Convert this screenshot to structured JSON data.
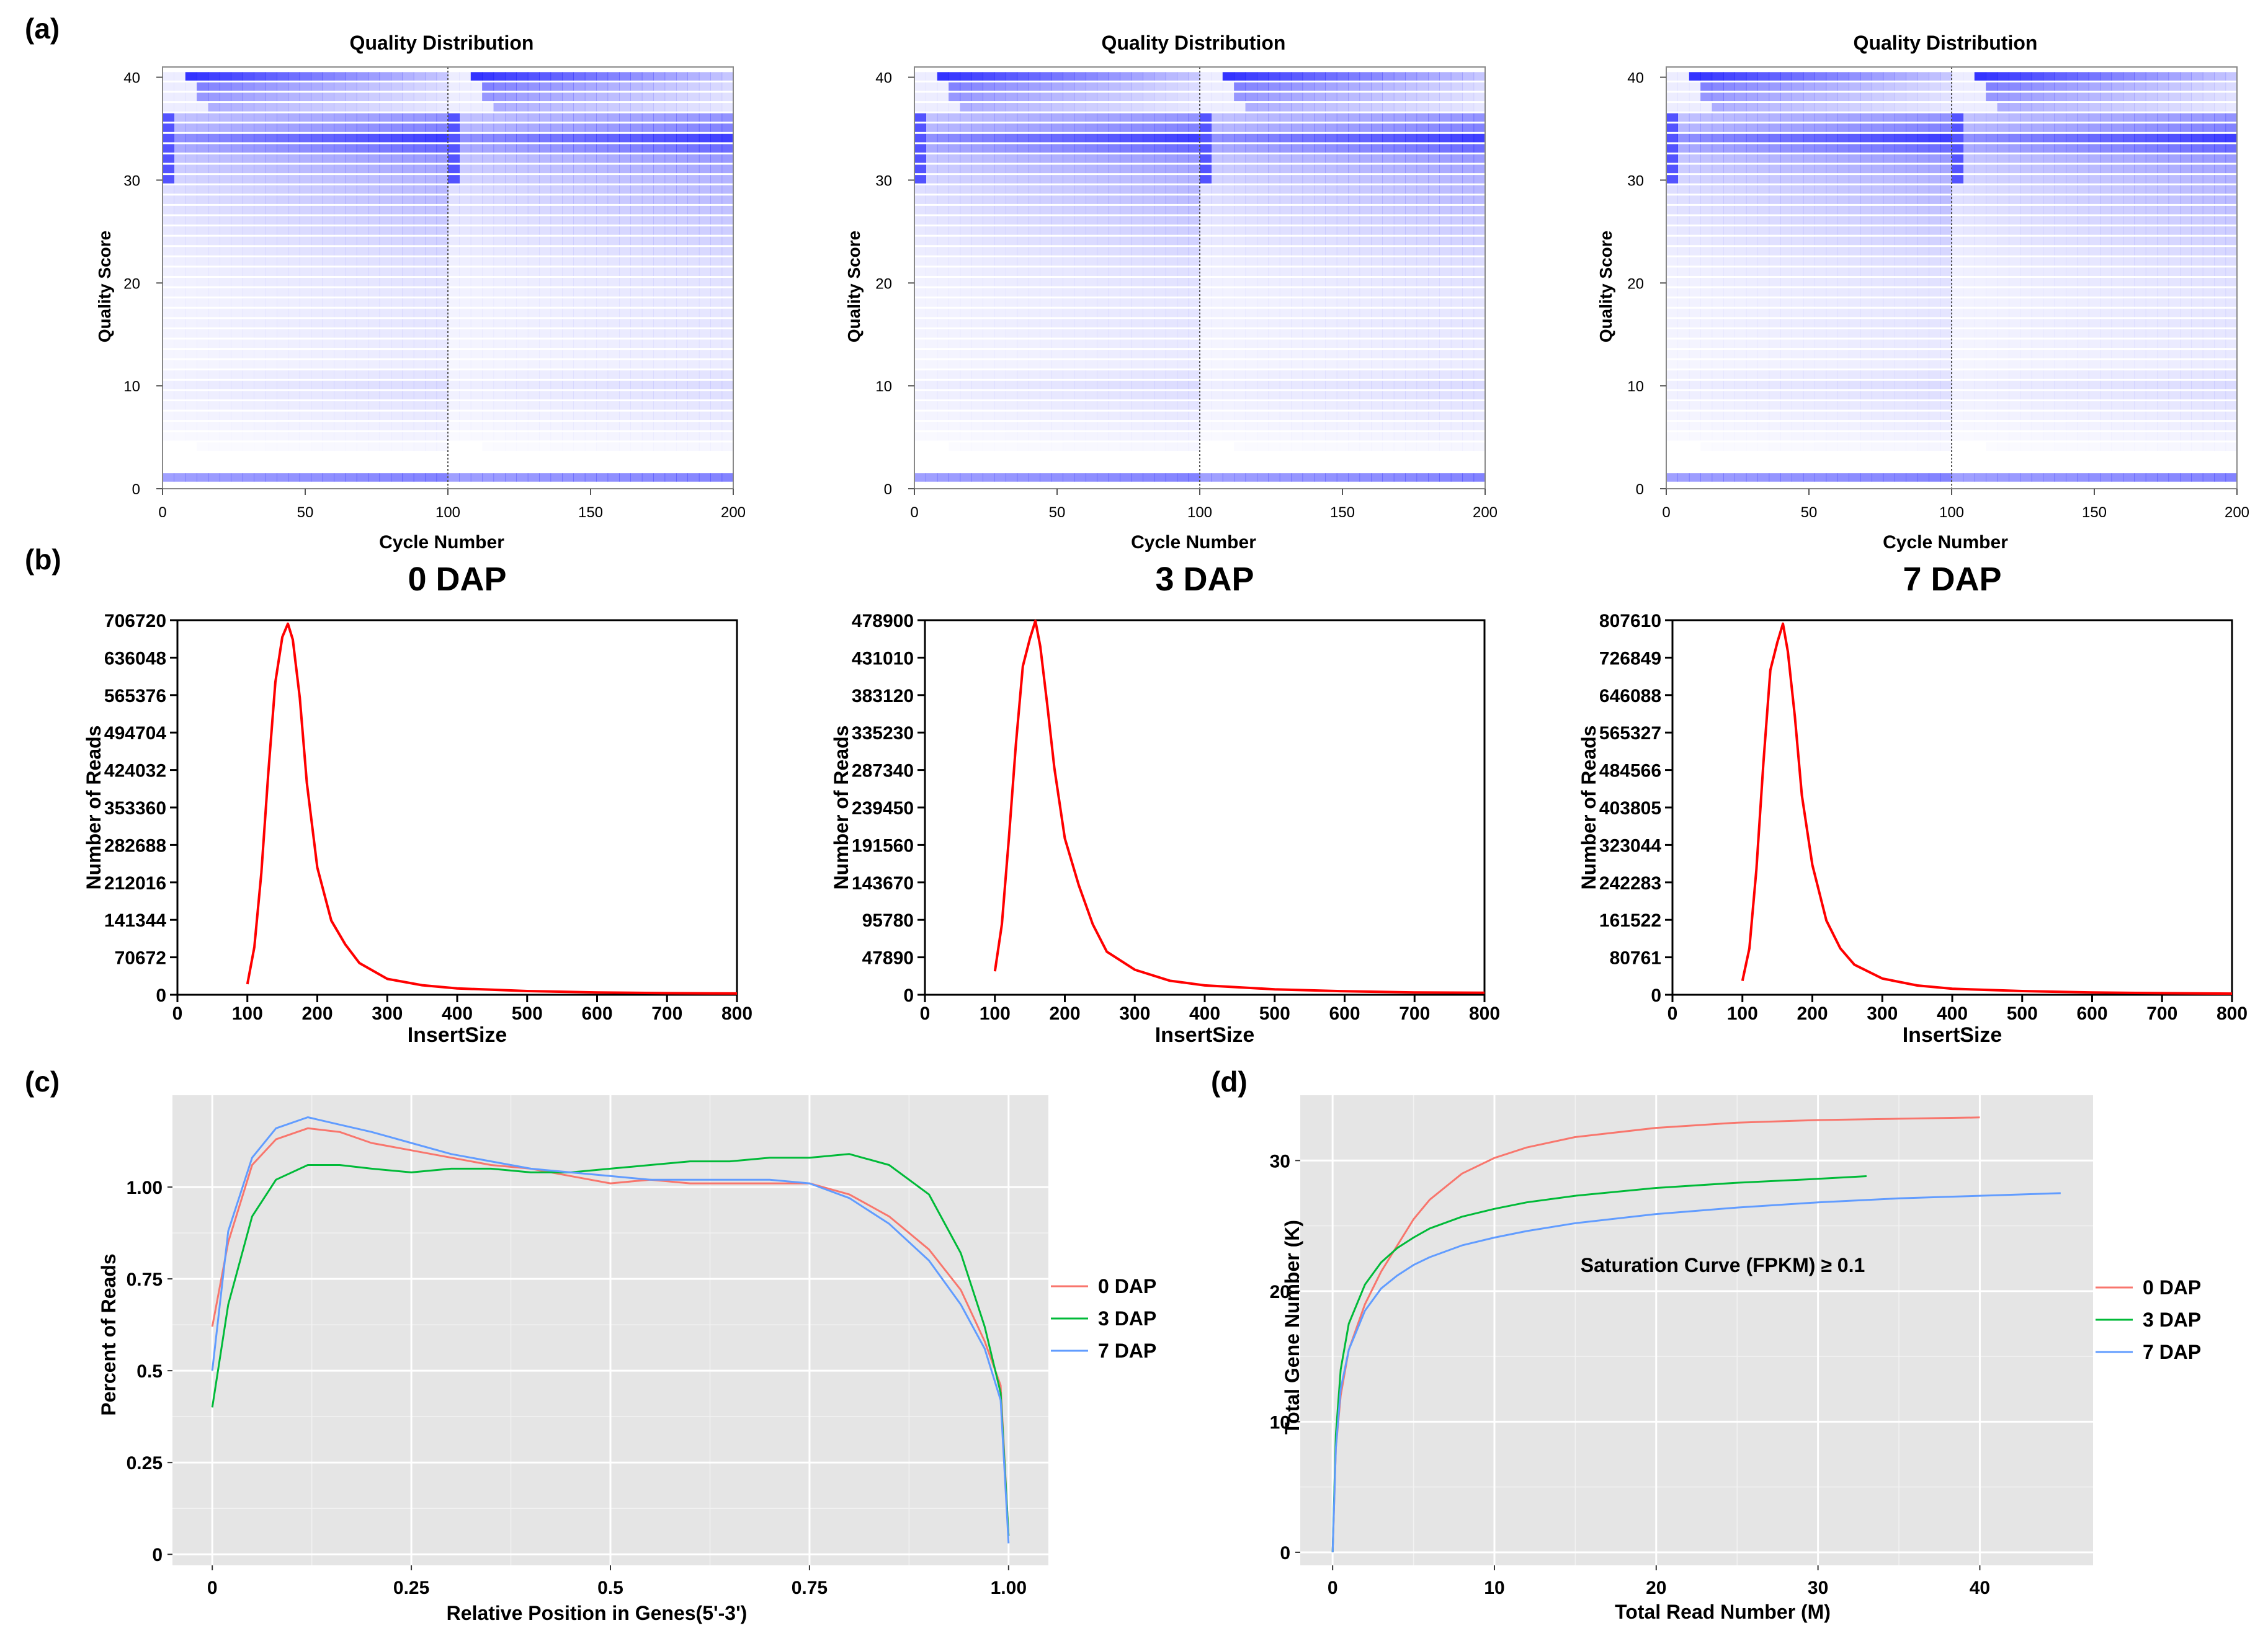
{
  "panels": {
    "a": "(a)",
    "b": "(b)",
    "c": "(c)",
    "d": "(d)"
  },
  "colors": {
    "heat_blue": "#1a1aff",
    "insert_red": "#ff0000",
    "series_0dap": "#f8766d",
    "series_3dap": "#00ba38",
    "series_7dap": "#619cff",
    "panel_bg": "#e5e5e5"
  },
  "chart_data": [
    {
      "id": "qual_0",
      "type": "heatmap",
      "title": "Quality Distribution",
      "xlabel": "Cycle Number",
      "ylabel": "Quality Score",
      "xlim": [
        0,
        200
      ],
      "ylim": [
        0,
        41
      ],
      "xticks": [
        0,
        50,
        100,
        150,
        200
      ],
      "yticks": [
        0,
        10,
        20,
        30,
        40
      ],
      "read_split_cycle": 100,
      "quality_profile": [
        {
          "score": 1,
          "intensity": 0.52
        },
        {
          "score": 2,
          "intensity": 0.0
        },
        {
          "score": 5,
          "intensity": 0.06
        },
        {
          "score": 7,
          "intensity": 0.1
        },
        {
          "score": 9,
          "intensity": 0.14
        },
        {
          "score": 10,
          "intensity": 0.16
        },
        {
          "score": 12,
          "intensity": 0.09
        },
        {
          "score": 14,
          "intensity": 0.1
        },
        {
          "score": 16,
          "intensity": 0.12
        },
        {
          "score": 18,
          "intensity": 0.11
        },
        {
          "score": 20,
          "intensity": 0.13
        },
        {
          "score": 22,
          "intensity": 0.15
        },
        {
          "score": 24,
          "intensity": 0.2
        },
        {
          "score": 26,
          "intensity": 0.24
        },
        {
          "score": 28,
          "intensity": 0.3
        },
        {
          "score": 30,
          "intensity": 0.33
        },
        {
          "score": 32,
          "intensity": 0.45
        },
        {
          "score": 34,
          "intensity": 0.85
        },
        {
          "score": 35,
          "intensity": 0.55
        },
        {
          "score": 37,
          "intensity": 0.4
        },
        {
          "score": 39,
          "intensity": 0.6
        },
        {
          "score": 40,
          "intensity": 0.95
        }
      ]
    },
    {
      "id": "qual_3",
      "type": "heatmap",
      "title": "Quality Distribution",
      "xlabel": "Cycle Number",
      "ylabel": "Quality Score",
      "xlim": [
        0,
        200
      ],
      "ylim": [
        0,
        41
      ],
      "xticks": [
        0,
        50,
        100,
        150,
        200
      ],
      "yticks": [
        0,
        10,
        20,
        30,
        40
      ],
      "read_split_cycle": 100,
      "quality_profile": [
        {
          "score": 1,
          "intensity": 0.52
        },
        {
          "score": 2,
          "intensity": 0.0
        },
        {
          "score": 5,
          "intensity": 0.06
        },
        {
          "score": 7,
          "intensity": 0.1
        },
        {
          "score": 9,
          "intensity": 0.14
        },
        {
          "score": 10,
          "intensity": 0.16
        },
        {
          "score": 12,
          "intensity": 0.09
        },
        {
          "score": 14,
          "intensity": 0.1
        },
        {
          "score": 16,
          "intensity": 0.12
        },
        {
          "score": 18,
          "intensity": 0.11
        },
        {
          "score": 20,
          "intensity": 0.13
        },
        {
          "score": 22,
          "intensity": 0.15
        },
        {
          "score": 24,
          "intensity": 0.2
        },
        {
          "score": 26,
          "intensity": 0.24
        },
        {
          "score": 28,
          "intensity": 0.3
        },
        {
          "score": 30,
          "intensity": 0.33
        },
        {
          "score": 32,
          "intensity": 0.45
        },
        {
          "score": 34,
          "intensity": 0.85
        },
        {
          "score": 35,
          "intensity": 0.55
        },
        {
          "score": 37,
          "intensity": 0.4
        },
        {
          "score": 39,
          "intensity": 0.6
        },
        {
          "score": 40,
          "intensity": 0.95
        }
      ]
    },
    {
      "id": "qual_7",
      "type": "heatmap",
      "title": "Quality Distribution",
      "xlabel": "Cycle Number",
      "ylabel": "Quality Score",
      "xlim": [
        0,
        200
      ],
      "ylim": [
        0,
        41
      ],
      "xticks": [
        0,
        50,
        100,
        150,
        200
      ],
      "yticks": [
        0,
        10,
        20,
        30,
        40
      ],
      "read_split_cycle": 100,
      "quality_profile": [
        {
          "score": 1,
          "intensity": 0.52
        },
        {
          "score": 2,
          "intensity": 0.0
        },
        {
          "score": 5,
          "intensity": 0.06
        },
        {
          "score": 7,
          "intensity": 0.1
        },
        {
          "score": 9,
          "intensity": 0.14
        },
        {
          "score": 10,
          "intensity": 0.16
        },
        {
          "score": 12,
          "intensity": 0.09
        },
        {
          "score": 14,
          "intensity": 0.1
        },
        {
          "score": 16,
          "intensity": 0.12
        },
        {
          "score": 18,
          "intensity": 0.11
        },
        {
          "score": 20,
          "intensity": 0.13
        },
        {
          "score": 22,
          "intensity": 0.15
        },
        {
          "score": 24,
          "intensity": 0.2
        },
        {
          "score": 26,
          "intensity": 0.24
        },
        {
          "score": 28,
          "intensity": 0.3
        },
        {
          "score": 30,
          "intensity": 0.33
        },
        {
          "score": 32,
          "intensity": 0.45
        },
        {
          "score": 34,
          "intensity": 0.85
        },
        {
          "score": 35,
          "intensity": 0.55
        },
        {
          "score": 37,
          "intensity": 0.4
        },
        {
          "score": 39,
          "intensity": 0.6
        },
        {
          "score": 40,
          "intensity": 0.95
        }
      ]
    },
    {
      "id": "insert_0",
      "type": "line",
      "title": "0 DAP",
      "xlabel": "InsertSize",
      "ylabel": "Number of Reads",
      "xlim": [
        0,
        800
      ],
      "ylim": [
        0,
        706720
      ],
      "xticks": [
        0,
        100,
        200,
        300,
        400,
        500,
        600,
        700,
        800
      ],
      "yticks": [
        0,
        70672,
        141344,
        212016,
        282688,
        353360,
        424032,
        494704,
        565376,
        636048,
        706720
      ],
      "x": [
        100,
        110,
        120,
        130,
        140,
        150,
        158,
        165,
        175,
        185,
        200,
        220,
        240,
        260,
        300,
        350,
        400,
        500,
        600,
        700,
        800
      ],
      "y": [
        20000,
        90000,
        230000,
        420000,
        590000,
        675000,
        700000,
        670000,
        560000,
        400000,
        240000,
        140000,
        95000,
        60000,
        30000,
        18000,
        12000,
        7000,
        4500,
        3000,
        2500
      ]
    },
    {
      "id": "insert_3",
      "type": "line",
      "title": "3 DAP",
      "xlabel": "InsertSize",
      "ylabel": "Number of Reads",
      "xlim": [
        0,
        800
      ],
      "ylim": [
        0,
        478900
      ],
      "xticks": [
        0,
        100,
        200,
        300,
        400,
        500,
        600,
        700,
        800
      ],
      "yticks": [
        0,
        47890,
        95780,
        143670,
        191560,
        239450,
        287340,
        335230,
        383120,
        431010,
        478900
      ],
      "x": [
        100,
        110,
        120,
        130,
        140,
        150,
        158,
        165,
        175,
        185,
        200,
        220,
        240,
        260,
        300,
        350,
        400,
        500,
        600,
        700,
        800
      ],
      "y": [
        30000,
        90000,
        200000,
        320000,
        420000,
        455000,
        478000,
        445000,
        370000,
        290000,
        200000,
        140000,
        90000,
        55000,
        32000,
        18000,
        12000,
        7000,
        4500,
        3000,
        2500
      ]
    },
    {
      "id": "insert_7",
      "type": "line",
      "title": "7 DAP",
      "xlabel": "InsertSize",
      "ylabel": "Number of Reads",
      "xlim": [
        0,
        800
      ],
      "ylim": [
        0,
        807610
      ],
      "xticks": [
        0,
        100,
        200,
        300,
        400,
        500,
        600,
        700,
        800
      ],
      "yticks": [
        0,
        80761,
        161522,
        242283,
        323044,
        403805,
        484566,
        565327,
        646088,
        726849,
        807610
      ],
      "x": [
        100,
        110,
        120,
        130,
        140,
        150,
        158,
        165,
        175,
        185,
        200,
        220,
        240,
        260,
        300,
        350,
        400,
        500,
        600,
        700,
        800
      ],
      "y": [
        30000,
        100000,
        270000,
        500000,
        700000,
        760000,
        800000,
        740000,
        600000,
        430000,
        280000,
        160000,
        100000,
        65000,
        35000,
        20000,
        13000,
        8000,
        5000,
        3500,
        2500
      ]
    },
    {
      "id": "coverage",
      "type": "line",
      "title": "",
      "xlabel": "Relative Position in Genes(5'-3')",
      "ylabel": "Percent  of Reads",
      "xlim": [
        -0.05,
        1.05
      ],
      "ylim": [
        -0.03,
        1.25
      ],
      "xticks": [
        0,
        0.25,
        0.5,
        0.75,
        1.0
      ],
      "xtick_labels": [
        "0",
        "0.25",
        "0.5",
        "0.75",
        "1.00"
      ],
      "yticks": [
        0,
        0.25,
        0.5,
        0.75,
        1.0
      ],
      "ytick_labels": [
        "0",
        "0.25",
        "0.5",
        "0.75",
        "1.00"
      ],
      "legend": "right",
      "series": [
        {
          "name": "0 DAP",
          "color": "#f8766d",
          "x": [
            0,
            0.02,
            0.05,
            0.08,
            0.12,
            0.16,
            0.2,
            0.25,
            0.3,
            0.35,
            0.4,
            0.45,
            0.5,
            0.55,
            0.6,
            0.65,
            0.7,
            0.75,
            0.8,
            0.85,
            0.9,
            0.94,
            0.97,
            0.99,
            1.0
          ],
          "y": [
            0.62,
            0.85,
            1.06,
            1.13,
            1.16,
            1.15,
            1.12,
            1.1,
            1.08,
            1.06,
            1.05,
            1.03,
            1.01,
            1.02,
            1.01,
            1.01,
            1.01,
            1.01,
            0.98,
            0.92,
            0.83,
            0.72,
            0.58,
            0.46,
            0.05
          ]
        },
        {
          "name": "3 DAP",
          "color": "#00ba38",
          "x": [
            0,
            0.02,
            0.05,
            0.08,
            0.12,
            0.16,
            0.2,
            0.25,
            0.3,
            0.35,
            0.4,
            0.45,
            0.5,
            0.55,
            0.6,
            0.65,
            0.7,
            0.75,
            0.8,
            0.85,
            0.9,
            0.94,
            0.97,
            0.99,
            1.0
          ],
          "y": [
            0.4,
            0.68,
            0.92,
            1.02,
            1.06,
            1.06,
            1.05,
            1.04,
            1.05,
            1.05,
            1.04,
            1.04,
            1.05,
            1.06,
            1.07,
            1.07,
            1.08,
            1.08,
            1.09,
            1.06,
            0.98,
            0.82,
            0.62,
            0.44,
            0.05
          ]
        },
        {
          "name": "7 DAP",
          "color": "#619cff",
          "x": [
            0,
            0.02,
            0.05,
            0.08,
            0.12,
            0.16,
            0.2,
            0.25,
            0.3,
            0.35,
            0.4,
            0.45,
            0.5,
            0.55,
            0.6,
            0.65,
            0.7,
            0.75,
            0.8,
            0.85,
            0.9,
            0.94,
            0.97,
            0.99,
            1.0
          ],
          "y": [
            0.5,
            0.88,
            1.08,
            1.16,
            1.19,
            1.17,
            1.15,
            1.12,
            1.09,
            1.07,
            1.05,
            1.04,
            1.03,
            1.02,
            1.02,
            1.02,
            1.02,
            1.01,
            0.97,
            0.9,
            0.8,
            0.68,
            0.56,
            0.42,
            0.03
          ]
        }
      ]
    },
    {
      "id": "saturation",
      "type": "line",
      "title": "",
      "xlabel": "Total Read Number (M)",
      "ylabel": "Total Gene Number (K)",
      "annotation": "Saturation Curve (FPKM) ≥ 0.1",
      "xlim": [
        -2,
        47
      ],
      "ylim": [
        -1,
        35
      ],
      "xticks": [
        0,
        10,
        20,
        30,
        40
      ],
      "xtick_labels": [
        "0",
        "10",
        "20",
        "30",
        "40"
      ],
      "yticks": [
        0,
        10,
        20,
        30
      ],
      "ytick_labels": [
        "0",
        "10",
        "20",
        "30"
      ],
      "legend": "right",
      "series": [
        {
          "name": "0 DAP",
          "color": "#f8766d",
          "x": [
            0,
            0.2,
            0.5,
            1,
            2,
            3,
            4,
            5,
            6,
            8,
            10,
            12,
            15,
            20,
            25,
            30,
            35,
            40
          ],
          "y": [
            0,
            8,
            12,
            15.5,
            19,
            21.5,
            23.5,
            25.5,
            27,
            29,
            30.2,
            31,
            31.8,
            32.5,
            32.9,
            33.1,
            33.2,
            33.3
          ]
        },
        {
          "name": "3 DAP",
          "color": "#00ba38",
          "x": [
            0,
            0.2,
            0.5,
            1,
            2,
            3,
            4,
            5,
            6,
            8,
            10,
            12,
            15,
            20,
            25,
            30,
            33
          ],
          "y": [
            0,
            9,
            14,
            17.5,
            20.5,
            22.2,
            23.3,
            24.1,
            24.8,
            25.7,
            26.3,
            26.8,
            27.3,
            27.9,
            28.3,
            28.6,
            28.8
          ]
        },
        {
          "name": "7 DAP",
          "color": "#619cff",
          "x": [
            0,
            0.2,
            0.5,
            1,
            2,
            3,
            4,
            5,
            6,
            8,
            10,
            12,
            15,
            20,
            25,
            30,
            35,
            40,
            45
          ],
          "y": [
            0,
            8,
            12.5,
            15.5,
            18.5,
            20.2,
            21.2,
            22,
            22.6,
            23.5,
            24.1,
            24.6,
            25.2,
            25.9,
            26.4,
            26.8,
            27.1,
            27.3,
            27.5
          ]
        }
      ]
    }
  ]
}
